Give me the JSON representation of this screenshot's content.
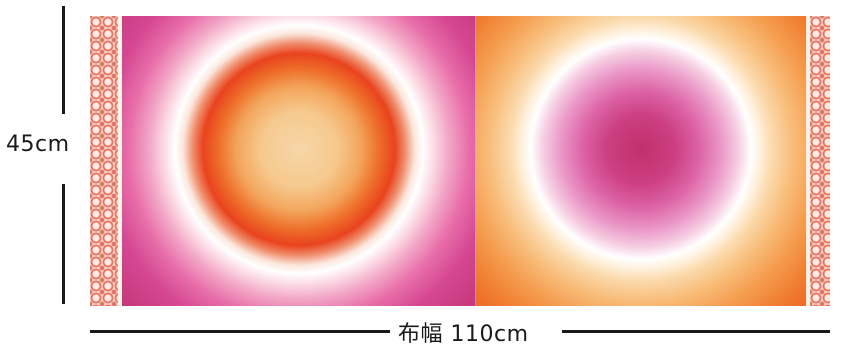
{
  "dimensions": {
    "height_label": "45cm",
    "width_label": "布幅 110cm"
  },
  "colors": {
    "magenta": "#c43578",
    "pink": "#e86ea9",
    "orange": "#ee6f2a",
    "red_orange": "#e9431e",
    "peach": "#f8bd7a",
    "cream": "#f7d6a8",
    "selvage_print": "#e2624a"
  }
}
